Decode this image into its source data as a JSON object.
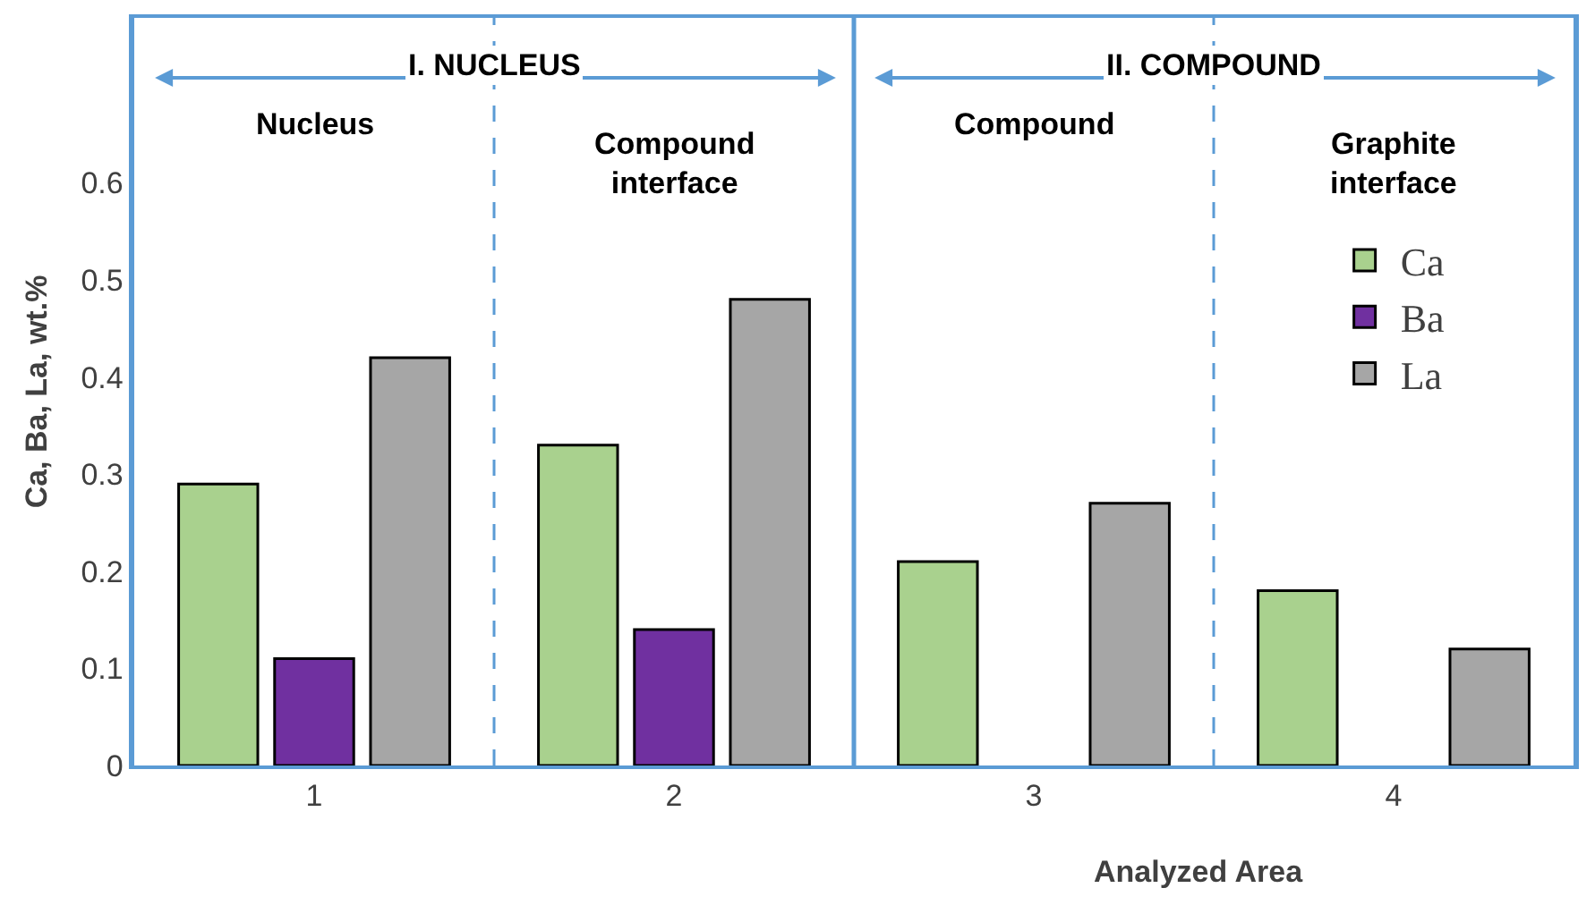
{
  "chart_data": {
    "type": "bar",
    "ylabel": "Ca, Ba, La, wt.%",
    "xlabel": "Analyzed Area",
    "x": [
      1,
      2,
      3,
      4
    ],
    "xlim": [
      0.5,
      4.5
    ],
    "xticks": [
      1,
      2,
      3,
      4
    ],
    "ylim": [
      0,
      0.77
    ],
    "yticks": [
      0,
      0.1,
      0.2,
      0.3,
      0.4,
      0.5,
      0.6
    ],
    "series": [
      {
        "name": "Ca",
        "color": "#a9d18e",
        "values": [
          0.29,
          0.33,
          0.21,
          0.18
        ]
      },
      {
        "name": "Ba",
        "color": "#7030a0",
        "values": [
          0.11,
          0.14,
          null,
          null
        ]
      },
      {
        "name": "La",
        "color": "#a6a6a6",
        "values": [
          0.42,
          0.48,
          0.27,
          0.12
        ]
      }
    ],
    "ref_lines": [
      {
        "axis": "x",
        "value": 2.5,
        "color": "#5b9bd5",
        "line_style": "solid"
      },
      {
        "axis": "x",
        "value": 1.5,
        "color": "#5b9bd5",
        "line_style": "dashed"
      },
      {
        "axis": "x",
        "value": 3.5,
        "color": "#5b9bd5",
        "line_style": "dashed"
      }
    ],
    "annotations": [
      "I. NUCLEUS",
      "II. COMPOUND",
      "Nucleus",
      "Compound\ninterface",
      "Compound",
      "Graphite\ninterface"
    ],
    "legend": "right"
  }
}
